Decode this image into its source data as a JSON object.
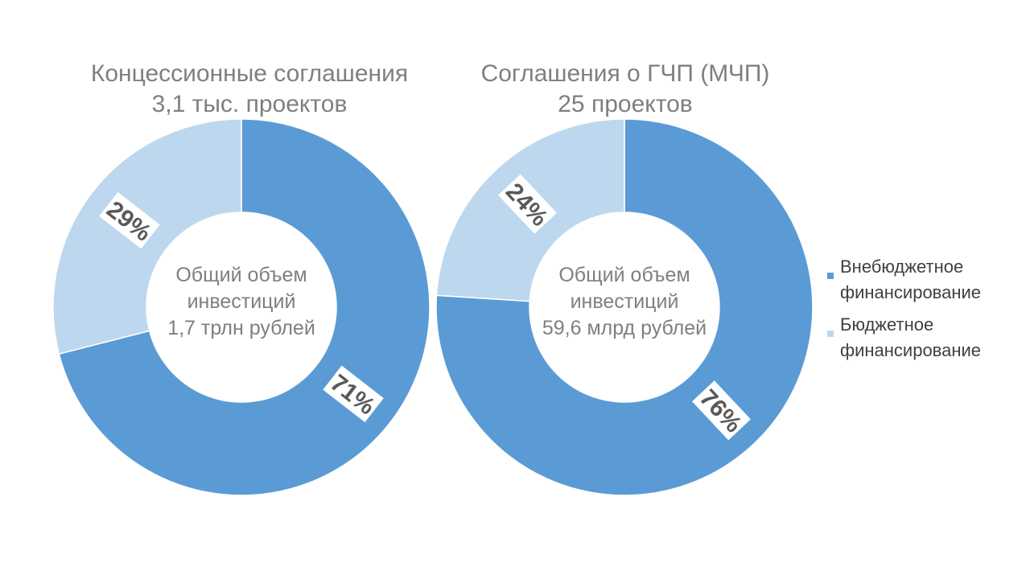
{
  "colors": {
    "series_dark": "#5b9bd5",
    "series_light": "#bdd7ee",
    "label_box": "#ffffff",
    "label_text": "#595959"
  },
  "legend": {
    "items": [
      {
        "label": "Внебюджетное финансирование",
        "color": "#5b9bd5"
      },
      {
        "label": "Бюджетное финансирование",
        "color": "#bdd7ee"
      }
    ]
  },
  "chart_data": [
    {
      "type": "pie",
      "title": "Концессионные соглашения",
      "subtitle": "3,1 тыс. проектов",
      "center_text": [
        "Общий объем",
        "инвестиций",
        "1,7 трлн рублей"
      ],
      "categories": [
        "Внебюджетное финансирование",
        "Бюджетное финансирование"
      ],
      "values": [
        71,
        29
      ],
      "data_labels": [
        "71%",
        "29%"
      ]
    },
    {
      "type": "pie",
      "title": "Соглашения о ГЧП (МЧП)",
      "subtitle": "25 проектов",
      "center_text": [
        "Общий объем",
        "инвестиций",
        "59,6 млрд рублей"
      ],
      "categories": [
        "Внебюджетное финансирование",
        "Бюджетное финансирование"
      ],
      "values": [
        76,
        24
      ],
      "data_labels": [
        "76%",
        "24%"
      ]
    }
  ]
}
